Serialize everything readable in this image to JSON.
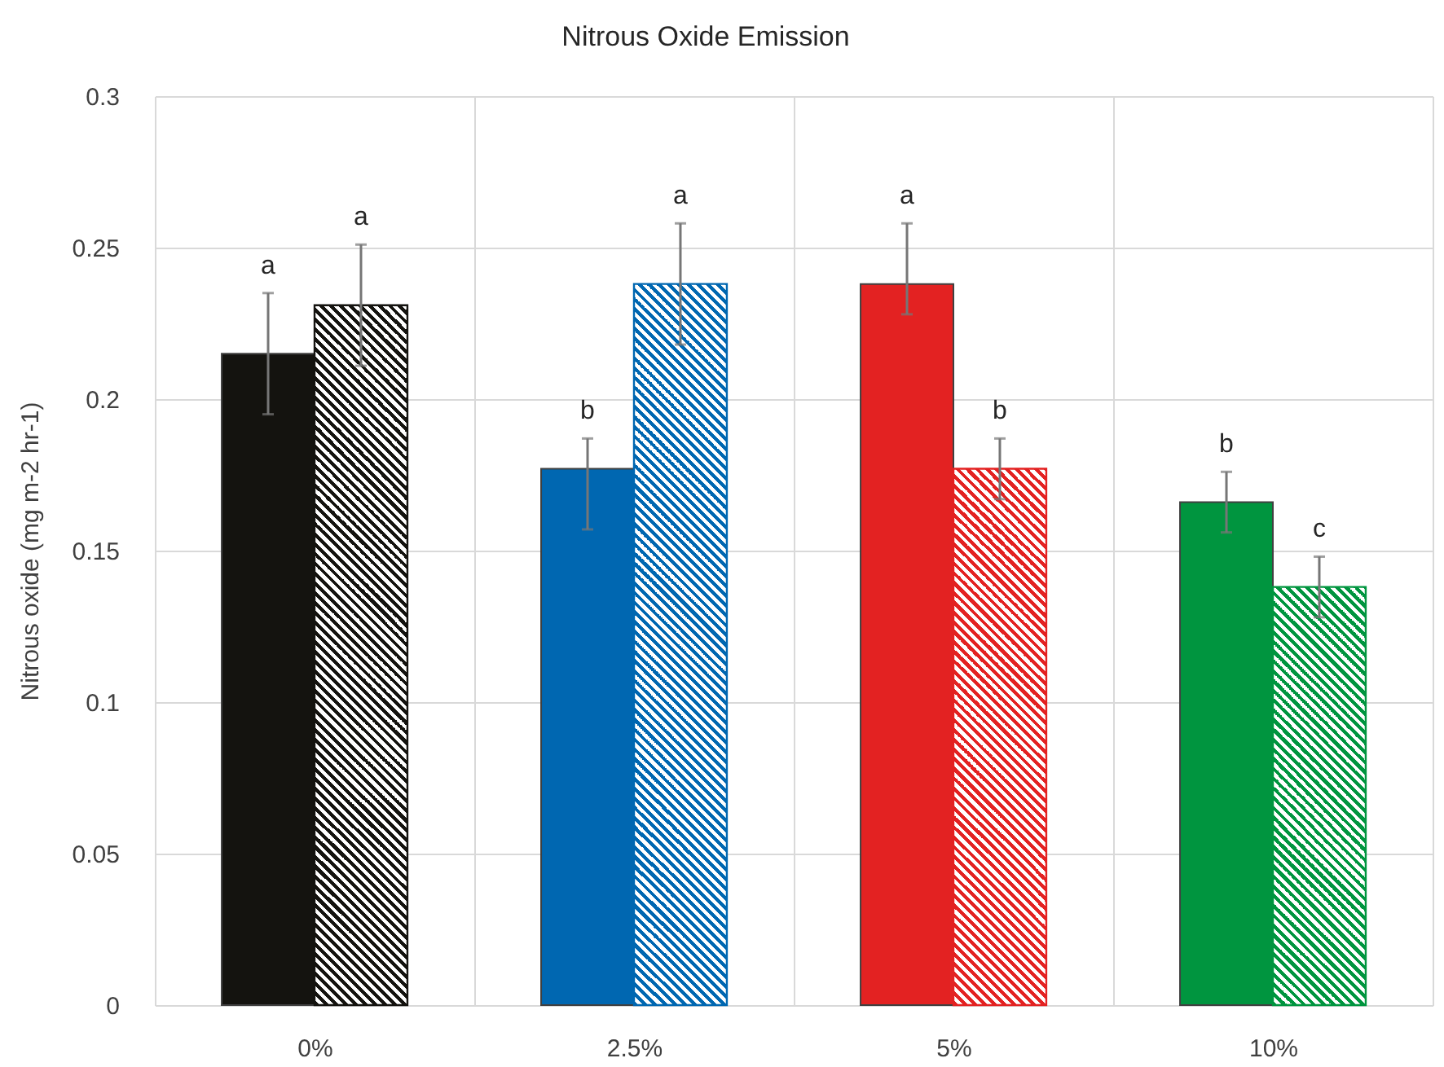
{
  "chart_data": {
    "type": "bar",
    "title": "Nitrous Oxide Emission",
    "ylabel": "Nitrous oxide (mg m-2 hr-1)",
    "categories": [
      "0%",
      "2.5%",
      "5%",
      "10%"
    ],
    "series": [
      {
        "colors": [
          "#14130f",
          "#0067b1",
          "#e32222",
          "#00953f"
        ],
        "values": [
          0.215,
          0.177,
          0.238,
          0.166
        ],
        "errors": [
          0.02,
          [
            0.157,
            0.187
          ],
          [
            0.228,
            0.258
          ],
          0.01
        ]
      },
      {
        "colors": [
          "#14130f",
          "#0067b1",
          "#e32222",
          "#00953f"
        ],
        "values": [
          0.231,
          0.238,
          0.177,
          0.138
        ],
        "errors": [
          0.02,
          0.02,
          0.01,
          0.01
        ]
      }
    ],
    "ylim": [
      0,
      0.3
    ],
    "yticks": [
      0,
      0.05,
      0.1,
      0.15,
      0.2,
      0.25,
      0.3
    ],
    "grid": true,
    "annotations": [
      "a",
      "a",
      "b",
      "a",
      "a",
      "b",
      "b",
      "c"
    ]
  }
}
